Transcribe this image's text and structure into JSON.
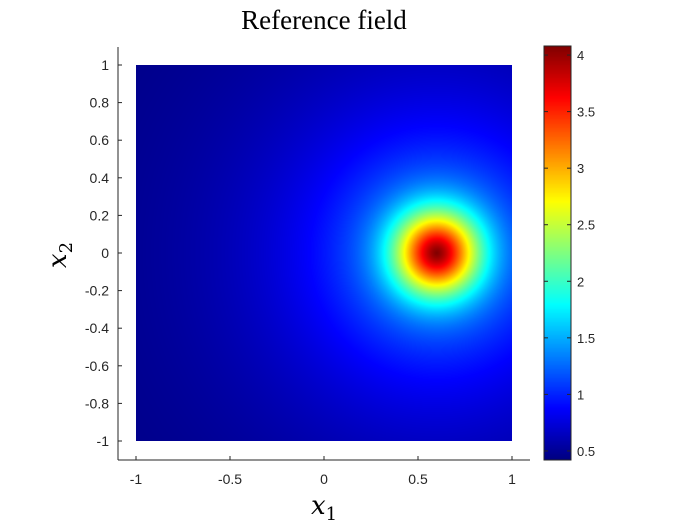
{
  "chart_data": {
    "type": "heatmap",
    "title": "Reference field",
    "xlabel": {
      "symbol": "x",
      "subscript": "1"
    },
    "ylabel": {
      "symbol": "x",
      "subscript": "2"
    },
    "xlim": [
      -1,
      1
    ],
    "ylim": [
      -1,
      1
    ],
    "xticks": [
      "-1",
      "-0.5",
      "0",
      "0.5",
      "1"
    ],
    "yticks": [
      "1",
      "0.8",
      "0.6",
      "0.4",
      "0.2",
      "0",
      "-0.2",
      "-0.4",
      "-0.6",
      "-0.8",
      "-1"
    ],
    "xtick_values": [
      -1,
      -0.5,
      0,
      0.5,
      1
    ],
    "ytick_values": [
      1,
      0.8,
      0.6,
      0.4,
      0.2,
      0,
      -0.2,
      -0.4,
      -0.6,
      -0.8,
      -1
    ],
    "colormap": "jet",
    "clim": [
      0.42,
      4.08
    ],
    "colorbar_ticks": [
      "4",
      "3.5",
      "3",
      "2.5",
      "2",
      "1.5",
      "1",
      "0.5"
    ],
    "colorbar_tick_values": [
      4,
      3.5,
      3,
      2.5,
      2,
      1.5,
      1,
      0.5
    ],
    "colorbar_placement": "right",
    "field_peak": {
      "x1": 0.6,
      "x2": 0.0,
      "value": 4.08
    },
    "field_min_corner_value": 0.42,
    "grid": false
  }
}
